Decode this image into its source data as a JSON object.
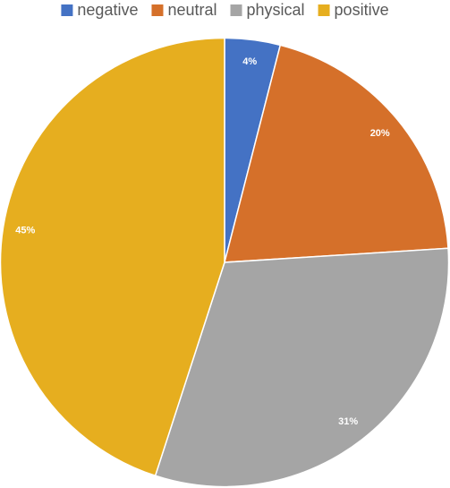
{
  "chart_data": {
    "type": "pie",
    "categories": [
      "negative",
      "neutral",
      "physical",
      "positive"
    ],
    "values": [
      4,
      20,
      31,
      45
    ],
    "value_labels": [
      "4%",
      "20%",
      "31%",
      "45%"
    ],
    "colors": [
      "#4472c4",
      "#d5702a",
      "#a5a5a5",
      "#e6ae1f"
    ],
    "legend": "top"
  }
}
